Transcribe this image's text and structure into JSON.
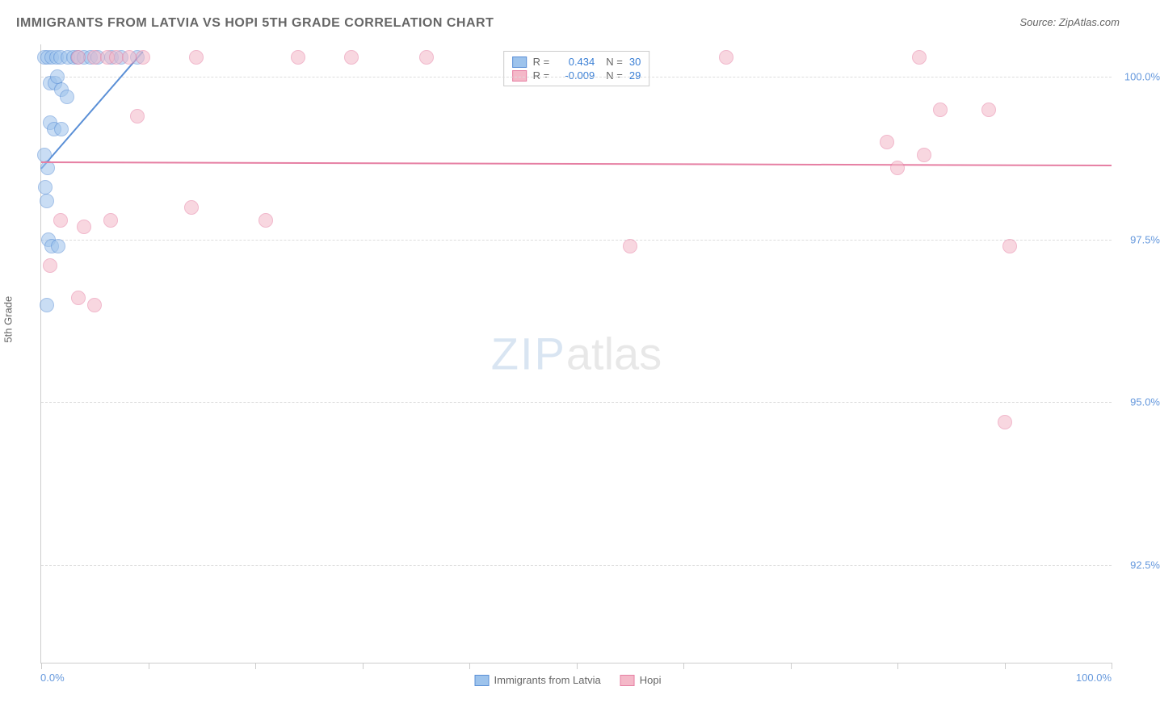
{
  "title": "IMMIGRANTS FROM LATVIA VS HOPI 5TH GRADE CORRELATION CHART",
  "source_prefix": "Source: ",
  "source_name": "ZipAtlas.com",
  "yaxis_label": "5th Grade",
  "watermark": {
    "part1": "ZIP",
    "part2": "atlas"
  },
  "chart": {
    "type": "scatter",
    "background_color": "#ffffff",
    "grid_color": "#dddddd",
    "axis_color": "#cccccc",
    "label_color": "#6699dd",
    "title_color": "#666666",
    "title_fontsize": 16,
    "label_fontsize": 13,
    "xlim": [
      0,
      100
    ],
    "ylim": [
      91.0,
      100.5
    ],
    "xtick_positions": [
      0,
      10,
      20,
      30,
      40,
      50,
      60,
      70,
      80,
      90,
      100
    ],
    "ytick_values": [
      92.5,
      95.0,
      97.5,
      100.0
    ],
    "ytick_labels": [
      "92.5%",
      "95.0%",
      "97.5%",
      "100.0%"
    ],
    "xaxis_min_label": "0.0%",
    "xaxis_max_label": "100.0%",
    "marker_radius": 9,
    "marker_opacity": 0.55,
    "series": [
      {
        "label": "Immigrants from Latvia",
        "color_fill": "#9dc3ec",
        "color_stroke": "#5a8fd6",
        "R": "0.434",
        "N": "30",
        "trend": {
          "x1": 0,
          "y1": 98.6,
          "x2": 9.5,
          "y2": 100.4,
          "color": "#5a8fd6",
          "width": 2
        },
        "points": [
          [
            0.3,
            100.3
          ],
          [
            0.6,
            100.3
          ],
          [
            1.0,
            100.3
          ],
          [
            1.4,
            100.3
          ],
          [
            1.8,
            100.3
          ],
          [
            2.5,
            100.3
          ],
          [
            3.0,
            100.3
          ],
          [
            3.4,
            100.3
          ],
          [
            4.0,
            100.3
          ],
          [
            4.6,
            100.3
          ],
          [
            5.3,
            100.3
          ],
          [
            6.6,
            100.3
          ],
          [
            7.5,
            100.3
          ],
          [
            9.0,
            100.3
          ],
          [
            0.8,
            99.9
          ],
          [
            1.3,
            99.9
          ],
          [
            1.9,
            99.8
          ],
          [
            2.4,
            99.7
          ],
          [
            0.8,
            99.3
          ],
          [
            1.2,
            99.2
          ],
          [
            1.9,
            99.2
          ],
          [
            0.3,
            98.8
          ],
          [
            0.6,
            98.6
          ],
          [
            0.4,
            98.3
          ],
          [
            0.5,
            98.1
          ],
          [
            0.7,
            97.5
          ],
          [
            1.0,
            97.4
          ],
          [
            1.6,
            97.4
          ],
          [
            0.5,
            96.5
          ],
          [
            1.5,
            100.0
          ]
        ]
      },
      {
        "label": "Hopi",
        "color_fill": "#f4b8c8",
        "color_stroke": "#e67fa3",
        "R": "-0.009",
        "N": "29",
        "trend": {
          "x1": 0,
          "y1": 98.7,
          "x2": 100,
          "y2": 98.65,
          "color": "#e67fa3",
          "width": 2
        },
        "points": [
          [
            3.5,
            100.3
          ],
          [
            5.0,
            100.3
          ],
          [
            6.2,
            100.3
          ],
          [
            7.0,
            100.3
          ],
          [
            8.2,
            100.3
          ],
          [
            9.5,
            100.3
          ],
          [
            14.5,
            100.3
          ],
          [
            24.0,
            100.3
          ],
          [
            29.0,
            100.3
          ],
          [
            36.0,
            100.3
          ],
          [
            64.0,
            100.3
          ],
          [
            82.0,
            100.3
          ],
          [
            9.0,
            99.4
          ],
          [
            84.0,
            99.5
          ],
          [
            88.5,
            99.5
          ],
          [
            79.0,
            99.0
          ],
          [
            82.5,
            98.8
          ],
          [
            80.0,
            98.6
          ],
          [
            1.8,
            97.8
          ],
          [
            4.0,
            97.7
          ],
          [
            6.5,
            97.8
          ],
          [
            14.0,
            98.0
          ],
          [
            21.0,
            97.8
          ],
          [
            55.0,
            97.4
          ],
          [
            90.5,
            97.4
          ],
          [
            3.5,
            96.6
          ],
          [
            5.0,
            96.5
          ],
          [
            90.0,
            94.7
          ],
          [
            0.8,
            97.1
          ]
        ]
      }
    ]
  },
  "legend_top": {
    "R_label": "R =",
    "N_label": "N =",
    "value_color": "#3a7fd5",
    "text_color": "#666666"
  },
  "legend_bottom": {
    "text_color": "#666666"
  }
}
